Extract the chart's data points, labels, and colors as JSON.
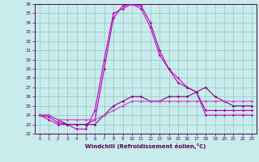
{
  "xlabel": "Windchill (Refroidissement éolien,°C)",
  "bg_color": "#c8ecec",
  "grid_color": "#99cccc",
  "xlim": [
    -0.5,
    23.5
  ],
  "ylim": [
    22,
    36
  ],
  "xticks": [
    0,
    1,
    2,
    3,
    4,
    5,
    6,
    7,
    8,
    9,
    10,
    11,
    12,
    13,
    14,
    15,
    16,
    17,
    18,
    19,
    20,
    21,
    22,
    23
  ],
  "yticks": [
    22,
    23,
    24,
    25,
    26,
    27,
    28,
    29,
    30,
    31,
    32,
    33,
    34,
    35,
    36
  ],
  "series": [
    {
      "x": [
        0,
        1,
        2,
        3,
        4,
        5,
        6,
        7,
        8,
        9,
        10,
        11,
        12,
        13,
        14,
        15,
        16,
        17,
        18,
        19,
        20,
        21,
        22,
        23
      ],
      "y": [
        24,
        23.5,
        23,
        23,
        22.5,
        22.5,
        24.5,
        30,
        35,
        35.5,
        36,
        35.5,
        33.5,
        30.5,
        29,
        28,
        27,
        26.5,
        24,
        24,
        24,
        24,
        24,
        24
      ],
      "color": "#cc00cc"
    },
    {
      "x": [
        0,
        1,
        2,
        3,
        4,
        5,
        6,
        7,
        8,
        9,
        10,
        11,
        12,
        13,
        14,
        15,
        16,
        17,
        18,
        19,
        20,
        21,
        22,
        23
      ],
      "y": [
        24,
        23.8,
        23.2,
        23,
        23,
        23,
        23.5,
        29,
        34.5,
        35.8,
        36,
        35.8,
        34,
        31,
        29,
        27.5,
        27,
        26.5,
        24.5,
        24.5,
        24.5,
        24.5,
        24.5,
        24.5
      ],
      "color": "#aa00aa"
    },
    {
      "x": [
        0,
        1,
        2,
        3,
        4,
        5,
        6,
        7,
        8,
        9,
        10,
        11,
        12,
        13,
        14,
        15,
        16,
        17,
        18,
        19,
        20,
        21,
        22,
        23
      ],
      "y": [
        24,
        24,
        23.5,
        23,
        23,
        23,
        23,
        24,
        25,
        25.5,
        26,
        26,
        25.5,
        25.5,
        26,
        26,
        26,
        26.5,
        27,
        26,
        25.5,
        25,
        25,
        25
      ],
      "color": "#880088"
    },
    {
      "x": [
        0,
        1,
        2,
        3,
        4,
        5,
        6,
        7,
        8,
        9,
        10,
        11,
        12,
        13,
        14,
        15,
        16,
        17,
        18,
        19,
        20,
        21,
        22,
        23
      ],
      "y": [
        24,
        24,
        23.5,
        23.5,
        23.5,
        23.5,
        23.5,
        24,
        24.5,
        25,
        25.5,
        25.5,
        25.5,
        25.5,
        25.5,
        25.5,
        25.5,
        25.5,
        25.5,
        25.5,
        25.5,
        25.5,
        25.5,
        25.5
      ],
      "color": "#cc44cc"
    }
  ]
}
